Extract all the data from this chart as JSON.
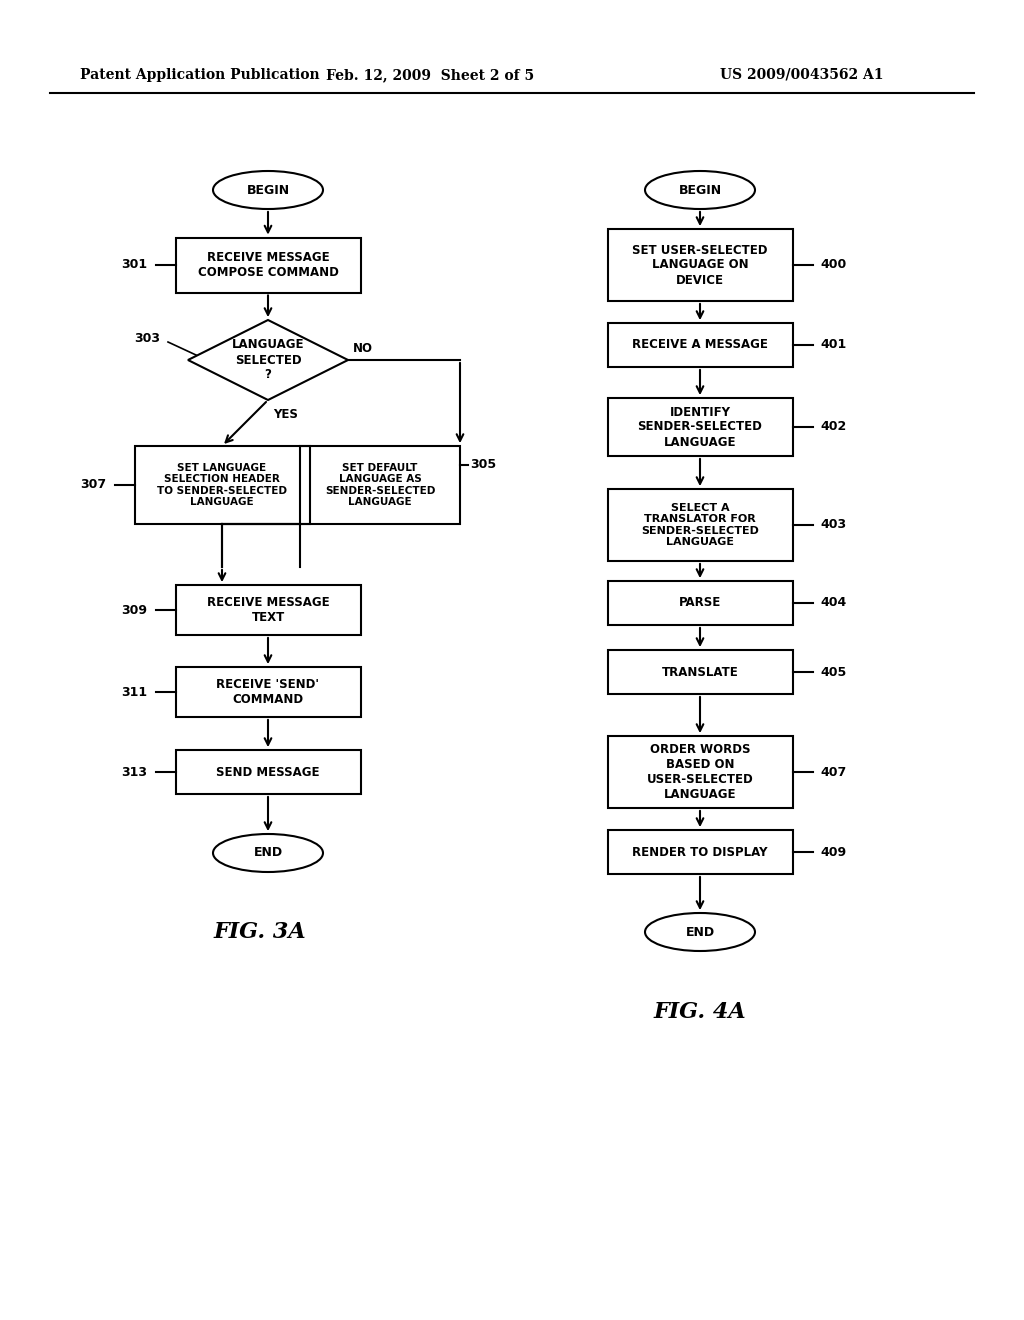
{
  "header_left": "Patent Application Publication",
  "header_middle": "Feb. 12, 2009  Sheet 2 of 5",
  "header_right": "US 2009/0043562 A1",
  "fig3a_caption": "FIG. 3A",
  "fig4a_caption": "FIG. 4A",
  "background_color": "#ffffff",
  "line_color": "#000000",
  "text_color": "#000000",
  "page_width": 10.24,
  "page_height": 13.2,
  "dpi": 100
}
